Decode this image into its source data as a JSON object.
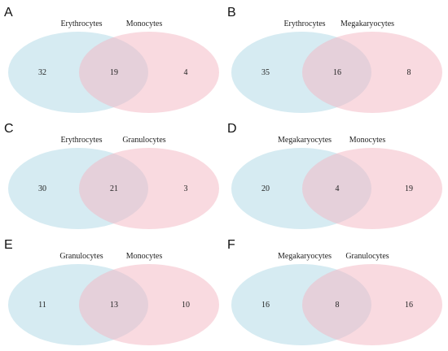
{
  "colors": {
    "left_fill": "#add8e6",
    "right_fill": "#f4b6c2",
    "background": "#ffffff",
    "text": "#222222"
  },
  "panels": [
    {
      "letter": "A",
      "left_set": "Erythrocytes",
      "right_set": "Monocytes",
      "left_only": "32",
      "overlap": "19",
      "right_only": "4"
    },
    {
      "letter": "B",
      "left_set": "Erythrocytes",
      "right_set": "Megakaryocytes",
      "left_only": "35",
      "overlap": "16",
      "right_only": "8"
    },
    {
      "letter": "C",
      "left_set": "Erythrocytes",
      "right_set": "Granulocytes",
      "left_only": "30",
      "overlap": "21",
      "right_only": "3"
    },
    {
      "letter": "D",
      "left_set": "Megakaryocytes",
      "right_set": "Monocytes",
      "left_only": "20",
      "overlap": "4",
      "right_only": "19"
    },
    {
      "letter": "E",
      "left_set": "Granulocytes",
      "right_set": "Monocytes",
      "left_only": "11",
      "overlap": "13",
      "right_only": "10"
    },
    {
      "letter": "F",
      "left_set": "Megakaryocytes",
      "right_set": "Granulocytes",
      "left_only": "16",
      "overlap": "8",
      "right_only": "16"
    }
  ]
}
